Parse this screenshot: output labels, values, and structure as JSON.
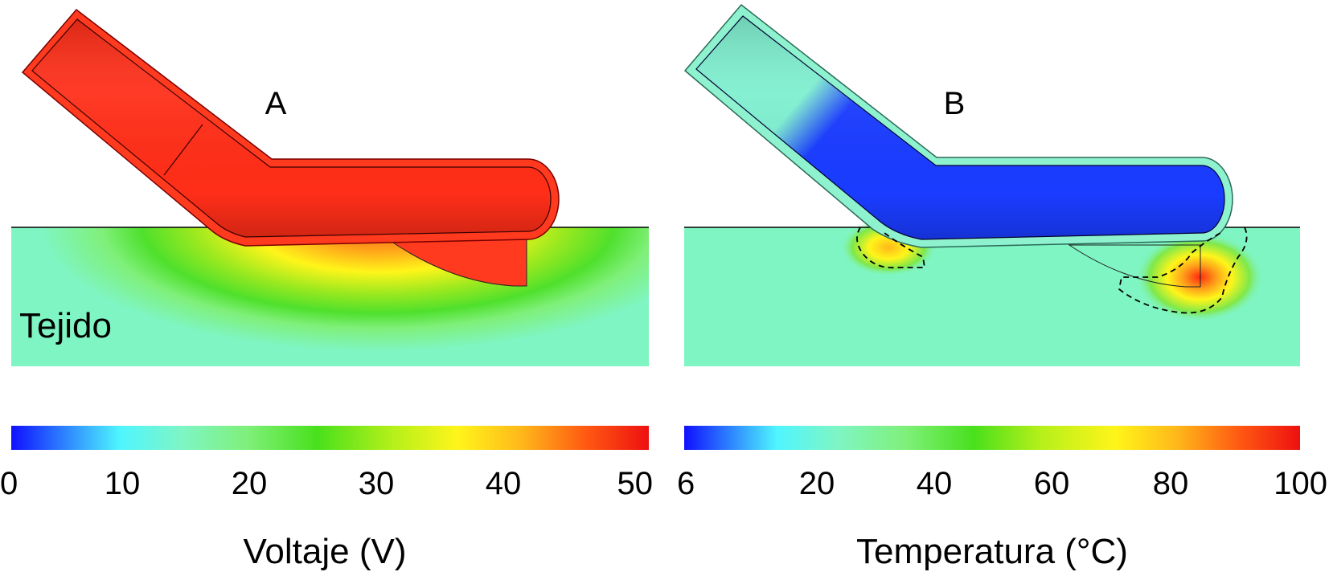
{
  "panels": [
    {
      "letter": "A",
      "region_label": "Tejido",
      "colorbar": {
        "title": "Voltaje (V)",
        "ticks": [
          "0",
          "10",
          "20",
          "30",
          "40",
          "50"
        ],
        "min": 0,
        "max": 50
      }
    },
    {
      "letter": "B",
      "colorbar": {
        "title": "Temperatura (°C)",
        "ticks": [
          "6",
          "20",
          "40",
          "60",
          "80",
          "100"
        ],
        "min": 6,
        "max": 100
      }
    }
  ],
  "colors": {
    "tissue": "#7ff5c3",
    "electrode_voltage": "#ff3a1f",
    "probe_cold": "#1a3cff",
    "probe_shaft_cool": "#8ff2cf",
    "hot": "#ff2a10",
    "colormap": [
      "#1010ff",
      "#2f8cff",
      "#4ff5ff",
      "#7ff5c3",
      "#7ff07a",
      "#49e01c",
      "#b6f01a",
      "#fff51a",
      "#ffb81a",
      "#ff5a12",
      "#ee1010"
    ]
  }
}
